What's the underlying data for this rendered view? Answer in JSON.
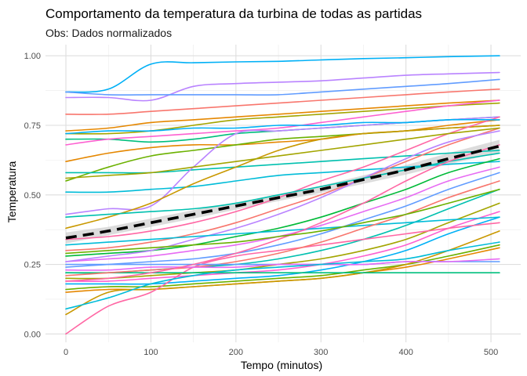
{
  "chart_data": {
    "type": "line",
    "title": "Comportamento da temperatura da turbina de todas as partidas",
    "subtitle": "Obs: Dados normalizados",
    "xlabel": "Tempo (minutos)",
    "ylabel": "Temperatura",
    "xlim": [
      -24,
      535
    ],
    "ylim": [
      -0.03,
      1.04
    ],
    "xticks": [
      0,
      100,
      200,
      300,
      400,
      500
    ],
    "yticks": [
      0.0,
      0.25,
      0.5,
      0.75,
      1.0
    ],
    "ytick_labels": [
      "0.00",
      "0.25",
      "0.50",
      "0.75",
      "1.00"
    ],
    "xtick_labels": [
      "0",
      "100",
      "200",
      "300",
      "400",
      "500"
    ],
    "grid": true,
    "background": "#ffffff",
    "grid_color": "#ebebeb",
    "palette": [
      "#F8766D",
      "#E58700",
      "#C99800",
      "#A3A500",
      "#6BB100",
      "#00BA38",
      "#00BF7D",
      "#00C0AF",
      "#00BCD8",
      "#00B0F6",
      "#619CFF",
      "#B983FF",
      "#E76BF3",
      "#FD61D1",
      "#FF67A4"
    ],
    "x": [
      0,
      50,
      100,
      150,
      200,
      250,
      300,
      350,
      400,
      450,
      510
    ],
    "series": [
      {
        "color": "#00B0F6",
        "values": [
          0.87,
          0.88,
          0.97,
          0.975,
          0.978,
          0.98,
          0.985,
          0.99,
          0.993,
          0.997,
          1.0
        ]
      },
      {
        "color": "#B983FF",
        "values": [
          0.85,
          0.85,
          0.84,
          0.89,
          0.9,
          0.905,
          0.91,
          0.92,
          0.93,
          0.935,
          0.94
        ]
      },
      {
        "color": "#619CFF",
        "values": [
          0.87,
          0.86,
          0.86,
          0.86,
          0.86,
          0.86,
          0.87,
          0.88,
          0.89,
          0.9,
          0.915
        ]
      },
      {
        "color": "#F8766D",
        "values": [
          0.79,
          0.79,
          0.8,
          0.81,
          0.82,
          0.83,
          0.84,
          0.85,
          0.86,
          0.87,
          0.88
        ]
      },
      {
        "color": "#E58700",
        "values": [
          0.73,
          0.74,
          0.76,
          0.77,
          0.78,
          0.79,
          0.8,
          0.81,
          0.82,
          0.83,
          0.84
        ]
      },
      {
        "color": "#A3A500",
        "values": [
          0.72,
          0.72,
          0.73,
          0.75,
          0.77,
          0.78,
          0.79,
          0.8,
          0.81,
          0.82,
          0.83
        ]
      },
      {
        "color": "#00BF7D",
        "values": [
          0.7,
          0.7,
          0.69,
          0.7,
          0.72,
          0.73,
          0.74,
          0.75,
          0.76,
          0.77,
          0.78
        ]
      },
      {
        "color": "#FD61D1",
        "values": [
          0.68,
          0.7,
          0.71,
          0.72,
          0.73,
          0.74,
          0.76,
          0.78,
          0.8,
          0.82,
          0.84
        ]
      },
      {
        "color": "#E58700",
        "values": [
          0.62,
          0.65,
          0.67,
          0.68,
          0.68,
          0.69,
          0.7,
          0.72,
          0.73,
          0.75,
          0.77
        ]
      },
      {
        "color": "#6BB100",
        "values": [
          0.55,
          0.6,
          0.64,
          0.66,
          0.68,
          0.7,
          0.71,
          0.72,
          0.73,
          0.74,
          0.75
        ]
      },
      {
        "color": "#00C0AF",
        "values": [
          0.58,
          0.58,
          0.58,
          0.59,
          0.6,
          0.61,
          0.62,
          0.63,
          0.64,
          0.65,
          0.66
        ]
      },
      {
        "color": "#00BCD8",
        "values": [
          0.51,
          0.51,
          0.52,
          0.53,
          0.55,
          0.57,
          0.58,
          0.59,
          0.6,
          0.61,
          0.62
        ]
      },
      {
        "color": "#B983FF",
        "values": [
          0.43,
          0.45,
          0.46,
          0.6,
          0.72,
          0.73,
          0.74,
          0.75,
          0.76,
          0.77,
          0.78
        ]
      },
      {
        "color": "#C99800",
        "values": [
          0.38,
          0.42,
          0.47,
          0.54,
          0.6,
          0.66,
          0.7,
          0.72,
          0.73,
          0.74,
          0.75
        ]
      },
      {
        "color": "#FF67A4",
        "values": [
          0.34,
          0.35,
          0.37,
          0.4,
          0.44,
          0.49,
          0.55,
          0.6,
          0.66,
          0.72,
          0.78
        ]
      },
      {
        "color": "#F8766D",
        "values": [
          0.3,
          0.31,
          0.33,
          0.36,
          0.4,
          0.45,
          0.5,
          0.56,
          0.62,
          0.68,
          0.74
        ]
      },
      {
        "color": "#00BA38",
        "values": [
          0.28,
          0.29,
          0.3,
          0.32,
          0.35,
          0.38,
          0.42,
          0.47,
          0.52,
          0.58,
          0.63
        ]
      },
      {
        "color": "#E76BF3",
        "values": [
          0.26,
          0.27,
          0.28,
          0.3,
          0.32,
          0.35,
          0.39,
          0.44,
          0.49,
          0.55,
          0.6
        ]
      },
      {
        "color": "#619CFF",
        "values": [
          0.24,
          0.25,
          0.26,
          0.27,
          0.29,
          0.32,
          0.36,
          0.41,
          0.46,
          0.52,
          0.58
        ]
      },
      {
        "color": "#00C0AF",
        "values": [
          0.22,
          0.22,
          0.23,
          0.24,
          0.25,
          0.27,
          0.3,
          0.34,
          0.39,
          0.45,
          0.52
        ]
      },
      {
        "color": "#A3A500",
        "values": [
          0.2,
          0.2,
          0.21,
          0.22,
          0.23,
          0.25,
          0.27,
          0.3,
          0.34,
          0.4,
          0.47
        ]
      },
      {
        "color": "#FD61D1",
        "values": [
          0.19,
          0.19,
          0.2,
          0.21,
          0.22,
          0.23,
          0.25,
          0.28,
          0.32,
          0.38,
          0.44
        ]
      },
      {
        "color": "#00B0F6",
        "values": [
          0.18,
          0.18,
          0.18,
          0.19,
          0.2,
          0.21,
          0.23,
          0.26,
          0.3,
          0.36,
          0.42
        ]
      },
      {
        "color": "#6BB100",
        "values": [
          0.16,
          0.17,
          0.17,
          0.18,
          0.19,
          0.2,
          0.21,
          0.23,
          0.25,
          0.28,
          0.32
        ]
      },
      {
        "color": "#E58700",
        "values": [
          0.15,
          0.16,
          0.16,
          0.17,
          0.18,
          0.19,
          0.2,
          0.22,
          0.24,
          0.27,
          0.31
        ]
      },
      {
        "color": "#C99800",
        "values": [
          0.07,
          0.15,
          0.16,
          0.17,
          0.18,
          0.19,
          0.2,
          0.22,
          0.25,
          0.3,
          0.37
        ]
      },
      {
        "color": "#FF67A4",
        "values": [
          0.0,
          0.1,
          0.15,
          0.24,
          0.28,
          0.3,
          0.32,
          0.34,
          0.36,
          0.38,
          0.4
        ]
      },
      {
        "color": "#B983FF",
        "values": [
          0.26,
          0.28,
          0.3,
          0.34,
          0.38,
          0.43,
          0.49,
          0.56,
          0.63,
          0.69,
          0.73
        ]
      },
      {
        "color": "#00BCD8",
        "values": [
          0.32,
          0.33,
          0.34,
          0.35,
          0.36,
          0.37,
          0.38,
          0.39,
          0.4,
          0.41,
          0.42
        ]
      },
      {
        "color": "#00BF7D",
        "values": [
          0.22,
          0.22,
          0.22,
          0.22,
          0.22,
          0.22,
          0.22,
          0.22,
          0.22,
          0.22,
          0.22
        ]
      },
      {
        "color": "#F8766D",
        "values": [
          0.21,
          0.22,
          0.23,
          0.24,
          0.26,
          0.29,
          0.33,
          0.38,
          0.43,
          0.49,
          0.55
        ]
      },
      {
        "color": "#619CFF",
        "values": [
          0.25,
          0.25,
          0.25,
          0.25,
          0.25,
          0.25,
          0.25,
          0.25,
          0.26,
          0.26,
          0.26
        ]
      },
      {
        "color": "#E76BF3",
        "values": [
          0.23,
          0.23,
          0.24,
          0.24,
          0.24,
          0.25,
          0.25,
          0.25,
          0.26,
          0.26,
          0.27
        ]
      },
      {
        "color": "#00B0F6",
        "values": [
          0.72,
          0.73,
          0.73,
          0.74,
          0.74,
          0.75,
          0.75,
          0.76,
          0.76,
          0.77,
          0.77
        ]
      },
      {
        "color": "#A3A500",
        "values": [
          0.56,
          0.57,
          0.58,
          0.6,
          0.62,
          0.64,
          0.66,
          0.68,
          0.7,
          0.72,
          0.74
        ]
      },
      {
        "color": "#00C0AF",
        "values": [
          0.42,
          0.43,
          0.44,
          0.45,
          0.47,
          0.5,
          0.53,
          0.56,
          0.59,
          0.62,
          0.65
        ]
      },
      {
        "color": "#FF67A4",
        "values": [
          0.19,
          0.2,
          0.22,
          0.25,
          0.29,
          0.34,
          0.4,
          0.47,
          0.55,
          0.62,
          0.68
        ]
      },
      {
        "color": "#6BB100",
        "values": [
          0.29,
          0.3,
          0.31,
          0.32,
          0.33,
          0.35,
          0.37,
          0.4,
          0.43,
          0.47,
          0.52
        ]
      },
      {
        "color": "#00BCD8",
        "values": [
          0.09,
          0.13,
          0.18,
          0.21,
          0.23,
          0.24,
          0.25,
          0.26,
          0.27,
          0.3,
          0.33
        ]
      }
    ],
    "reference_line": {
      "color": "#000000",
      "style": "dashed",
      "values": [
        0.345,
        0.37,
        0.4,
        0.43,
        0.46,
        0.49,
        0.52,
        0.555,
        0.59,
        0.63,
        0.675
      ]
    },
    "reference_band": {
      "color": "#bfbfbf",
      "lower": [
        0.325,
        0.355,
        0.385,
        0.415,
        0.447,
        0.478,
        0.507,
        0.54,
        0.573,
        0.61,
        0.652
      ],
      "upper": [
        0.365,
        0.385,
        0.415,
        0.445,
        0.473,
        0.502,
        0.533,
        0.57,
        0.607,
        0.65,
        0.698
      ]
    }
  }
}
